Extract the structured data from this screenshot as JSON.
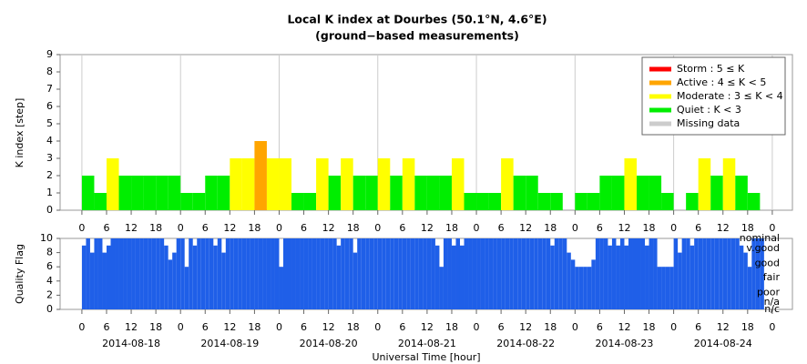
{
  "chart_data": [
    {
      "type": "bar",
      "title": "Local K index at Dourbes (50.1°N, 4.6°E)",
      "subtitle": "(ground−based measurements)",
      "y_label": "K index [step]",
      "x": [
        0,
        3,
        6,
        9,
        12,
        15,
        18,
        21,
        24,
        27,
        30,
        33,
        36,
        39,
        42,
        45,
        48,
        51,
        54,
        57,
        60,
        63,
        66,
        69,
        72,
        75,
        78,
        81,
        84,
        87,
        90,
        93,
        96,
        99,
        102,
        105,
        108,
        111,
        114,
        117,
        120,
        123,
        126,
        129,
        132,
        135,
        138,
        141,
        144,
        147,
        150,
        153,
        156,
        159,
        162,
        165
      ],
      "values": [
        2,
        1,
        3,
        2,
        2,
        2,
        2,
        2,
        1,
        1,
        2,
        2,
        3,
        3,
        4,
        3,
        3,
        1,
        1,
        3,
        2,
        3,
        2,
        2,
        3,
        2,
        3,
        2,
        2,
        2,
        3,
        1,
        1,
        1,
        3,
        2,
        2,
        1,
        1,
        0,
        1,
        1,
        2,
        2,
        3,
        2,
        2,
        1,
        0,
        1,
        3,
        2,
        3,
        2,
        1,
        0
      ],
      "bar_width": 3,
      "xlim": [
        -5.3,
        172.9
      ],
      "ylim": [
        0,
        9
      ],
      "yticks": [
        0,
        1,
        2,
        3,
        4,
        5,
        6,
        7,
        8,
        9
      ],
      "xticks": [
        0,
        6,
        12,
        18,
        {
          "value": 24,
          "label": "0"
        },
        {
          "value": 30,
          "label": "6"
        },
        {
          "value": 36,
          "label": "12"
        },
        {
          "value": 42,
          "label": "18"
        },
        {
          "value": 48,
          "label": "0"
        },
        {
          "value": 54,
          "label": "6"
        },
        {
          "value": 60,
          "label": "12"
        },
        {
          "value": 66,
          "label": "18"
        },
        {
          "value": 72,
          "label": "0"
        },
        {
          "value": 78,
          "label": "6"
        },
        {
          "value": 84,
          "label": "12"
        },
        {
          "value": 90,
          "label": "18"
        },
        {
          "value": 96,
          "label": "0"
        },
        {
          "value": 102,
          "label": "6"
        },
        {
          "value": 108,
          "label": "12"
        },
        {
          "value": 114,
          "label": "18"
        },
        {
          "value": 120,
          "label": "0"
        },
        {
          "value": 126,
          "label": "6"
        },
        {
          "value": 132,
          "label": "12"
        },
        {
          "value": 138,
          "label": "18"
        },
        {
          "value": 144,
          "label": "0"
        },
        {
          "value": 150,
          "label": "6"
        },
        {
          "value": 156,
          "label": "12"
        },
        {
          "value": 162,
          "label": "18"
        },
        {
          "value": 168,
          "label": "0"
        }
      ],
      "grid": true,
      "legend": "upper right",
      "levels": [
        {
          "name": "Storm : 5 ≤ K",
          "color": "#ff0000",
          "min": 5
        },
        {
          "name": "Active : 4 ≤ K < 5",
          "color": "#ffa500",
          "min": 4
        },
        {
          "name": "Moderate : 3 ≤ K < 4",
          "color": "#ffff00",
          "min": 3
        },
        {
          "name": "Quiet : K < 3",
          "color": "#00ee00",
          "min": 0
        },
        {
          "name": "Missing data",
          "color": "#cccccc"
        }
      ]
    },
    {
      "type": "bar",
      "y_label": "Quality Flag",
      "x_label": "Universal Time [hour]",
      "color": "#1f5fe8",
      "bar_width": 1,
      "x": [
        0,
        1,
        2,
        3,
        4,
        5,
        6,
        7,
        8,
        9,
        10,
        11,
        12,
        13,
        14,
        15,
        16,
        17,
        18,
        19,
        20,
        21,
        22,
        23,
        24,
        25,
        26,
        27,
        28,
        29,
        30,
        31,
        32,
        33,
        34,
        35,
        36,
        37,
        38,
        39,
        40,
        41,
        42,
        43,
        44,
        45,
        46,
        47,
        48,
        49,
        50,
        51,
        52,
        53,
        54,
        55,
        56,
        57,
        58,
        59,
        60,
        61,
        62,
        63,
        64,
        65,
        66,
        67,
        68,
        69,
        70,
        71,
        72,
        73,
        74,
        75,
        76,
        77,
        78,
        79,
        80,
        81,
        82,
        83,
        84,
        85,
        86,
        87,
        88,
        89,
        90,
        91,
        92,
        93,
        94,
        95,
        96,
        97,
        98,
        99,
        100,
        101,
        102,
        103,
        104,
        105,
        106,
        107,
        108,
        109,
        110,
        111,
        112,
        113,
        114,
        115,
        116,
        117,
        118,
        119,
        120,
        121,
        122,
        123,
        124,
        125,
        126,
        127,
        128,
        129,
        130,
        131,
        132,
        133,
        134,
        135,
        136,
        137,
        138,
        139,
        140,
        141,
        142,
        143,
        144,
        145,
        146,
        147,
        148,
        149,
        150,
        151,
        152,
        153,
        154,
        155,
        156,
        157,
        158,
        159,
        160,
        161,
        162,
        163,
        164,
        165,
        166,
        167
      ],
      "values": [
        9,
        10,
        8,
        10,
        10,
        8,
        9,
        10,
        10,
        10,
        10,
        10,
        10,
        10,
        10,
        10,
        10,
        10,
        10,
        10,
        9,
        7,
        8,
        10,
        10,
        6,
        10,
        9,
        10,
        10,
        10,
        10,
        9,
        10,
        8,
        10,
        10,
        10,
        10,
        10,
        10,
        10,
        10,
        10,
        10,
        10,
        10,
        10,
        6,
        10,
        10,
        10,
        10,
        10,
        10,
        10,
        10,
        10,
        10,
        10,
        10,
        10,
        9,
        10,
        10,
        10,
        8,
        10,
        10,
        10,
        10,
        10,
        10,
        10,
        10,
        10,
        10,
        10,
        10,
        10,
        10,
        10,
        10,
        10,
        10,
        10,
        9,
        6,
        10,
        10,
        9,
        10,
        9,
        10,
        10,
        10,
        10,
        10,
        10,
        10,
        10,
        10,
        10,
        10,
        10,
        10,
        10,
        10,
        10,
        10,
        10,
        10,
        10,
        10,
        9,
        10,
        10,
        10,
        8,
        7,
        6,
        6,
        6,
        6,
        7,
        10,
        10,
        10,
        9,
        10,
        9,
        10,
        9,
        10,
        10,
        10,
        10,
        9,
        10,
        10,
        6,
        6,
        6,
        6,
        10,
        8,
        10,
        10,
        9,
        10,
        10,
        10,
        10,
        10,
        10,
        10,
        10,
        10,
        10,
        10,
        9,
        8,
        6,
        10,
        10,
        10,
        null,
        null
      ],
      "xlim": [
        -5.3,
        172.9
      ],
      "ylim": [
        0,
        10
      ],
      "yticks": [
        0,
        2,
        4,
        6,
        8,
        10
      ],
      "flag_labels": [
        {
          "value": 10,
          "label": "nominal"
        },
        {
          "value": 8.6,
          "label": "v.good"
        },
        {
          "value": 6.5,
          "label": "good"
        },
        {
          "value": 4.5,
          "label": "fair"
        },
        {
          "value": 2.4,
          "label": "poor"
        },
        {
          "value": 1,
          "label": "n/a"
        },
        {
          "value": 0,
          "label": "n/c"
        }
      ],
      "xticks": [
        0,
        6,
        12,
        18,
        {
          "value": 24,
          "label": "0"
        },
        {
          "value": 30,
          "label": "6"
        },
        {
          "value": 36,
          "label": "12"
        },
        {
          "value": 42,
          "label": "18"
        },
        {
          "value": 48,
          "label": "0"
        },
        {
          "value": 54,
          "label": "6"
        },
        {
          "value": 60,
          "label": "12"
        },
        {
          "value": 66,
          "label": "18"
        },
        {
          "value": 72,
          "label": "0"
        },
        {
          "value": 78,
          "label": "6"
        },
        {
          "value": 84,
          "label": "12"
        },
        {
          "value": 90,
          "label": "18"
        },
        {
          "value": 96,
          "label": "0"
        },
        {
          "value": 102,
          "label": "6"
        },
        {
          "value": 108,
          "label": "12"
        },
        {
          "value": 114,
          "label": "18"
        },
        {
          "value": 120,
          "label": "0"
        },
        {
          "value": 126,
          "label": "6"
        },
        {
          "value": 132,
          "label": "12"
        },
        {
          "value": 138,
          "label": "18"
        },
        {
          "value": 144,
          "label": "0"
        },
        {
          "value": 150,
          "label": "6"
        },
        {
          "value": 156,
          "label": "12"
        },
        {
          "value": 162,
          "label": "18"
        },
        {
          "value": 168,
          "label": "0"
        }
      ],
      "date_labels": [
        {
          "value": 12,
          "label": "2014-08-18"
        },
        {
          "value": 36,
          "label": "2014-08-19"
        },
        {
          "value": 60,
          "label": "2014-08-20"
        },
        {
          "value": 84,
          "label": "2014-08-21"
        },
        {
          "value": 108,
          "label": "2014-08-22"
        },
        {
          "value": 132,
          "label": "2014-08-23"
        },
        {
          "value": 156,
          "label": "2014-08-24"
        }
      ]
    }
  ]
}
